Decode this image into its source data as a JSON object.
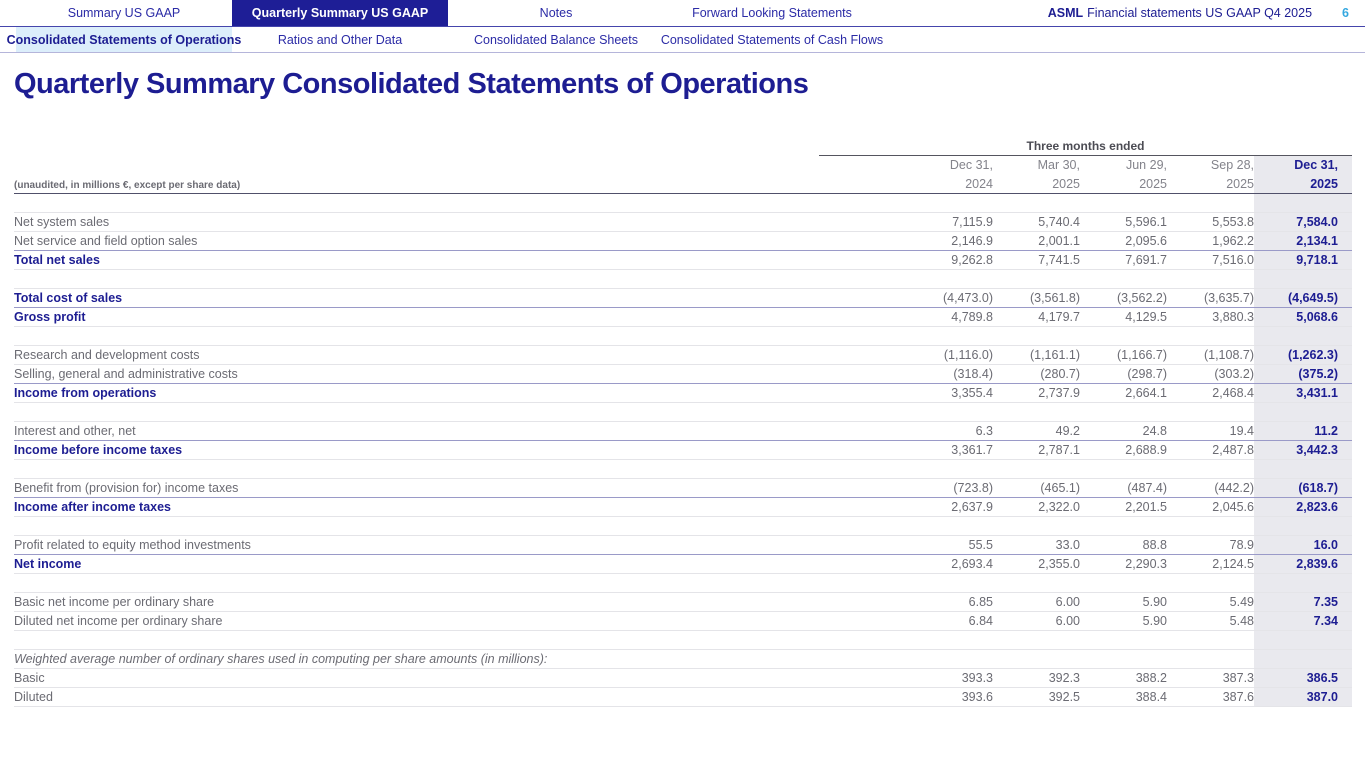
{
  "topnav": {
    "tabs": [
      {
        "label": "Summary US GAAP",
        "active": false
      },
      {
        "label": "Quarterly Summary US GAAP",
        "active": true
      },
      {
        "label": "Notes",
        "active": false
      },
      {
        "label": "Forward Looking Statements",
        "active": false
      }
    ],
    "brand": "ASML",
    "doc_title": "Financial statements US GAAP Q4 2025",
    "page_number": "6"
  },
  "subnav": {
    "tabs": [
      {
        "label": "Consolidated Statements of Operations",
        "active": true
      },
      {
        "label": "Ratios and Other Data",
        "active": false
      },
      {
        "label": "Consolidated Balance Sheets",
        "active": false
      },
      {
        "label": "Consolidated Statements of Cash Flows",
        "active": false
      }
    ]
  },
  "page": {
    "title": "Quarterly Summary Consolidated Statements of Operations"
  },
  "table": {
    "unaudited_note": "(unaudited, in millions €, except per share data)",
    "period_header": "Three months ended",
    "columns": [
      {
        "line1": "Dec 31,",
        "line2": "2024",
        "current": false
      },
      {
        "line1": "Mar 30,",
        "line2": "2025",
        "current": false
      },
      {
        "line1": "Jun 29,",
        "line2": "2025",
        "current": false
      },
      {
        "line1": "Sep 28,",
        "line2": "2025",
        "current": false
      },
      {
        "line1": "Dec 31,",
        "line2": "2025",
        "current": true
      }
    ],
    "rows": [
      {
        "label": "",
        "style": "blank",
        "values": []
      },
      {
        "label": "Net system sales",
        "style": "normal",
        "values": [
          "7,115.9",
          "5,740.4",
          "5,596.1",
          "5,553.8",
          "7,584.0"
        ]
      },
      {
        "label": "Net service and field option sales",
        "style": "normal",
        "values": [
          "2,146.9",
          "2,001.1",
          "2,095.6",
          "1,962.2",
          "2,134.1"
        ]
      },
      {
        "label": "Total net sales",
        "style": "total",
        "values": [
          "9,262.8",
          "7,741.5",
          "7,691.7",
          "7,516.0",
          "9,718.1"
        ]
      },
      {
        "label": "",
        "style": "blank",
        "values": []
      },
      {
        "label": "Total cost of sales",
        "style": "total",
        "values": [
          "(4,473.0)",
          "(3,561.8)",
          "(3,562.2)",
          "(3,635.7)",
          "(4,649.5)"
        ]
      },
      {
        "label": "Gross profit",
        "style": "total",
        "values": [
          "4,789.8",
          "4,179.7",
          "4,129.5",
          "3,880.3",
          "5,068.6"
        ]
      },
      {
        "label": "",
        "style": "blank",
        "values": []
      },
      {
        "label": "Research and development costs",
        "style": "normal",
        "values": [
          "(1,116.0)",
          "(1,161.1)",
          "(1,166.7)",
          "(1,108.7)",
          "(1,262.3)"
        ]
      },
      {
        "label": "Selling, general and administrative costs",
        "style": "normal",
        "values": [
          "(318.4)",
          "(280.7)",
          "(298.7)",
          "(303.2)",
          "(375.2)"
        ]
      },
      {
        "label": "Income from operations",
        "style": "total",
        "values": [
          "3,355.4",
          "2,737.9",
          "2,664.1",
          "2,468.4",
          "3,431.1"
        ]
      },
      {
        "label": "",
        "style": "blank",
        "values": []
      },
      {
        "label": "Interest and other, net",
        "style": "normal",
        "values": [
          "6.3",
          "49.2",
          "24.8",
          "19.4",
          "11.2"
        ]
      },
      {
        "label": "Income before income taxes",
        "style": "total",
        "values": [
          "3,361.7",
          "2,787.1",
          "2,688.9",
          "2,487.8",
          "3,442.3"
        ]
      },
      {
        "label": "",
        "style": "blank",
        "values": []
      },
      {
        "label": "Benefit from (provision for) income taxes",
        "style": "normal",
        "values": [
          "(723.8)",
          "(465.1)",
          "(487.4)",
          "(442.2)",
          "(618.7)"
        ]
      },
      {
        "label": "Income after income taxes",
        "style": "total",
        "values": [
          "2,637.9",
          "2,322.0",
          "2,201.5",
          "2,045.6",
          "2,823.6"
        ]
      },
      {
        "label": "",
        "style": "blank",
        "values": []
      },
      {
        "label": "Profit related to equity method investments",
        "style": "normal",
        "values": [
          "55.5",
          "33.0",
          "88.8",
          "78.9",
          "16.0"
        ]
      },
      {
        "label": "Net income",
        "style": "total",
        "values": [
          "2,693.4",
          "2,355.0",
          "2,290.3",
          "2,124.5",
          "2,839.6"
        ]
      },
      {
        "label": "",
        "style": "blank",
        "values": []
      },
      {
        "label": "Basic net income per ordinary share",
        "style": "normal",
        "values": [
          "6.85",
          "6.00",
          "5.90",
          "5.49",
          "7.35"
        ]
      },
      {
        "label": "Diluted net income per ordinary share",
        "style": "normal",
        "values": [
          "6.84",
          "6.00",
          "5.90",
          "5.48",
          "7.34"
        ]
      },
      {
        "label": "",
        "style": "blank",
        "values": []
      },
      {
        "label": "Weighted average number of ordinary shares used in computing per share amounts (in millions):",
        "style": "italic",
        "values": []
      },
      {
        "label": "Basic",
        "style": "normal",
        "values": [
          "393.3",
          "392.3",
          "388.2",
          "387.3",
          "386.5"
        ]
      },
      {
        "label": "Diluted",
        "style": "normal",
        "values": [
          "393.6",
          "392.5",
          "388.4",
          "387.6",
          "387.0"
        ]
      }
    ]
  },
  "colors": {
    "accent_navy": "#1e1e96",
    "active_subtab_bg": "#dceefb",
    "highlight_column_bg": "#e9e9ee",
    "page_number_blue": "#35a8e0"
  }
}
